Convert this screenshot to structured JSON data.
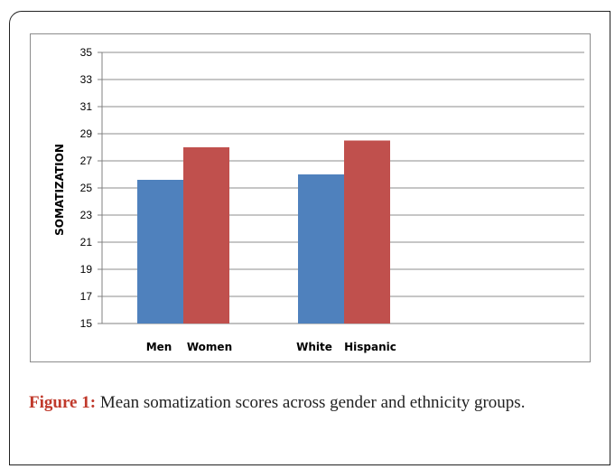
{
  "caption": {
    "label": "Figure 1:",
    "text": " Mean somatization scores across gender and ethnicity groups."
  },
  "chart_data": {
    "type": "bar",
    "ylabel": "SOMATIZATION",
    "xlabel": "",
    "ylim": [
      15,
      35
    ],
    "yticks": [
      15,
      17,
      19,
      21,
      23,
      25,
      27,
      29,
      31,
      33,
      35
    ],
    "grid": true,
    "groups": [
      {
        "bars": [
          {
            "label": "Men",
            "value": 25.6,
            "color": "#4f81bd"
          },
          {
            "label": "Women",
            "value": 28.0,
            "color": "#c0504d"
          }
        ]
      },
      {
        "bars": [
          {
            "label": "White",
            "value": 26.0,
            "color": "#4f81bd"
          },
          {
            "label": "Hispanic",
            "value": 28.5,
            "color": "#c0504d"
          }
        ]
      }
    ]
  }
}
